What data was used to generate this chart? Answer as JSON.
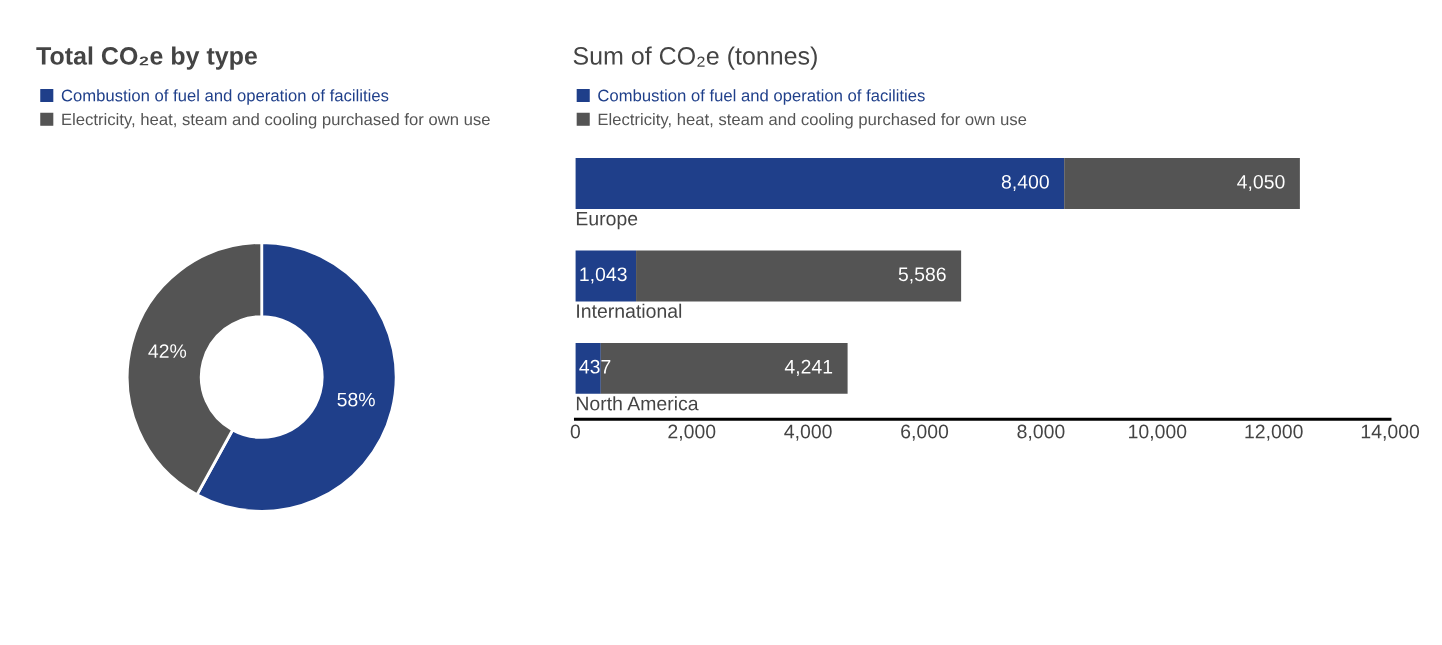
{
  "chart_data": [
    {
      "type": "donut",
      "title": "Total CO₂e by type",
      "categories": [
        "Combustion of fuel and operation of facilities",
        "Electricity, heat, steam and cooling purchased for own use"
      ],
      "values": [
        58,
        42
      ],
      "colors": [
        "#1f3f8a",
        "#545454"
      ],
      "value_labels": [
        "58%",
        "42%"
      ],
      "legend": "top left"
    },
    {
      "type": "bar",
      "orientation": "horizontal",
      "stacked": true,
      "title": "Sum of CO₂e (tonnes)",
      "categories": [
        "Europe",
        "International",
        "North America"
      ],
      "series": [
        {
          "name": "Combustion of fuel and operation of facilities",
          "color": "#1f3f8a",
          "values": [
            8400,
            1043,
            437
          ],
          "value_labels": [
            "8,400",
            "1,043",
            "437"
          ]
        },
        {
          "name": "Electricity, heat, steam and cooling purchased for own use",
          "color": "#545454",
          "values": [
            4050,
            5586,
            4241
          ],
          "value_labels": [
            "4,050",
            "5,586",
            "4,241"
          ]
        }
      ],
      "xlim": [
        0,
        14000
      ],
      "xticks": [
        0,
        {
          "value": 2000,
          "label": "2,000"
        },
        {
          "value": 4000,
          "label": "4,000"
        },
        {
          "value": 6000,
          "label": "6,000"
        },
        {
          "value": 8000,
          "label": "8,000"
        },
        {
          "value": 10000,
          "label": "10,000"
        },
        {
          "value": 12000,
          "label": "12,000"
        },
        {
          "value": 14000,
          "label": "14,000"
        }
      ],
      "legend": "top left",
      "grid": false
    }
  ]
}
